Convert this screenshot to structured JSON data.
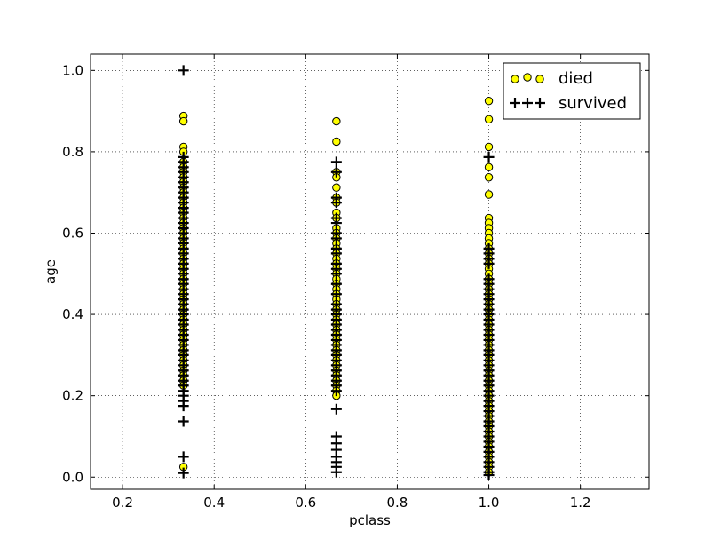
{
  "chart_data": {
    "type": "scatter",
    "title": "",
    "xlabel": "pclass",
    "ylabel": "age",
    "xlim": [
      0.13,
      1.35
    ],
    "ylim": [
      -0.03,
      1.04
    ],
    "xticks": [
      0.2,
      0.4,
      0.6,
      0.8,
      1.0,
      1.2
    ],
    "yticks": [
      0.0,
      0.2,
      0.4,
      0.6,
      0.8,
      1.0
    ],
    "xtick_labels": [
      "0.2",
      "0.4",
      "0.6",
      "0.8",
      "1.0",
      "1.2"
    ],
    "ytick_labels": [
      "0.0",
      "0.2",
      "0.4",
      "0.6",
      "0.8",
      "1.0"
    ],
    "grid": true,
    "legend_position": "top-right",
    "series": [
      {
        "name": "died",
        "marker": "circle",
        "color": "#ffff00",
        "points": [
          [
            0.333,
            0.888
          ],
          [
            0.333,
            0.875
          ],
          [
            0.333,
            0.812
          ],
          [
            0.333,
            0.8
          ],
          [
            0.333,
            0.775
          ],
          [
            0.333,
            0.762
          ],
          [
            0.333,
            0.75
          ],
          [
            0.333,
            0.737
          ],
          [
            0.333,
            0.725
          ],
          [
            0.333,
            0.712
          ],
          [
            0.333,
            0.7
          ],
          [
            0.333,
            0.687
          ],
          [
            0.333,
            0.675
          ],
          [
            0.333,
            0.662
          ],
          [
            0.333,
            0.65
          ],
          [
            0.333,
            0.637
          ],
          [
            0.333,
            0.625
          ],
          [
            0.333,
            0.612
          ],
          [
            0.333,
            0.6
          ],
          [
            0.333,
            0.587
          ],
          [
            0.333,
            0.575
          ],
          [
            0.333,
            0.562
          ],
          [
            0.333,
            0.55
          ],
          [
            0.333,
            0.537
          ],
          [
            0.333,
            0.525
          ],
          [
            0.333,
            0.512
          ],
          [
            0.333,
            0.5
          ],
          [
            0.333,
            0.487
          ],
          [
            0.333,
            0.475
          ],
          [
            0.333,
            0.462
          ],
          [
            0.333,
            0.45
          ],
          [
            0.333,
            0.437
          ],
          [
            0.333,
            0.425
          ],
          [
            0.333,
            0.412
          ],
          [
            0.333,
            0.4
          ],
          [
            0.333,
            0.387
          ],
          [
            0.333,
            0.375
          ],
          [
            0.333,
            0.362
          ],
          [
            0.333,
            0.35
          ],
          [
            0.333,
            0.337
          ],
          [
            0.333,
            0.325
          ],
          [
            0.333,
            0.312
          ],
          [
            0.333,
            0.3
          ],
          [
            0.333,
            0.287
          ],
          [
            0.333,
            0.275
          ],
          [
            0.333,
            0.262
          ],
          [
            0.333,
            0.25
          ],
          [
            0.333,
            0.237
          ],
          [
            0.333,
            0.225
          ],
          [
            0.333,
            0.025
          ],
          [
            0.667,
            0.875
          ],
          [
            0.667,
            0.825
          ],
          [
            0.667,
            0.75
          ],
          [
            0.667,
            0.737
          ],
          [
            0.667,
            0.712
          ],
          [
            0.667,
            0.687
          ],
          [
            0.667,
            0.675
          ],
          [
            0.667,
            0.65
          ],
          [
            0.667,
            0.637
          ],
          [
            0.667,
            0.612
          ],
          [
            0.667,
            0.6
          ],
          [
            0.667,
            0.587
          ],
          [
            0.667,
            0.575
          ],
          [
            0.667,
            0.562
          ],
          [
            0.667,
            0.55
          ],
          [
            0.667,
            0.537
          ],
          [
            0.667,
            0.525
          ],
          [
            0.667,
            0.512
          ],
          [
            0.667,
            0.5
          ],
          [
            0.667,
            0.487
          ],
          [
            0.667,
            0.475
          ],
          [
            0.667,
            0.462
          ],
          [
            0.667,
            0.45
          ],
          [
            0.667,
            0.437
          ],
          [
            0.667,
            0.425
          ],
          [
            0.667,
            0.412
          ],
          [
            0.667,
            0.4
          ],
          [
            0.667,
            0.387
          ],
          [
            0.667,
            0.375
          ],
          [
            0.667,
            0.362
          ],
          [
            0.667,
            0.35
          ],
          [
            0.667,
            0.337
          ],
          [
            0.667,
            0.325
          ],
          [
            0.667,
            0.312
          ],
          [
            0.667,
            0.3
          ],
          [
            0.667,
            0.287
          ],
          [
            0.667,
            0.275
          ],
          [
            0.667,
            0.262
          ],
          [
            0.667,
            0.25
          ],
          [
            0.667,
            0.237
          ],
          [
            0.667,
            0.225
          ],
          [
            0.667,
            0.212
          ],
          [
            0.667,
            0.2
          ],
          [
            1.0,
            0.925
          ],
          [
            1.0,
            0.88
          ],
          [
            1.0,
            0.812
          ],
          [
            1.0,
            0.762
          ],
          [
            1.0,
            0.737
          ],
          [
            1.0,
            0.695
          ],
          [
            1.0,
            0.637
          ],
          [
            1.0,
            0.625
          ],
          [
            1.0,
            0.612
          ],
          [
            1.0,
            0.6
          ],
          [
            1.0,
            0.587
          ],
          [
            1.0,
            0.575
          ],
          [
            1.0,
            0.562
          ],
          [
            1.0,
            0.55
          ],
          [
            1.0,
            0.537
          ],
          [
            1.0,
            0.525
          ],
          [
            1.0,
            0.512
          ],
          [
            1.0,
            0.5
          ],
          [
            1.0,
            0.487
          ],
          [
            1.0,
            0.475
          ],
          [
            1.0,
            0.462
          ],
          [
            1.0,
            0.45
          ],
          [
            1.0,
            0.437
          ],
          [
            1.0,
            0.425
          ],
          [
            1.0,
            0.412
          ],
          [
            1.0,
            0.4
          ],
          [
            1.0,
            0.387
          ],
          [
            1.0,
            0.375
          ],
          [
            1.0,
            0.362
          ],
          [
            1.0,
            0.35
          ],
          [
            1.0,
            0.337
          ],
          [
            1.0,
            0.325
          ],
          [
            1.0,
            0.312
          ],
          [
            1.0,
            0.3
          ],
          [
            1.0,
            0.287
          ],
          [
            1.0,
            0.275
          ],
          [
            1.0,
            0.262
          ],
          [
            1.0,
            0.25
          ],
          [
            1.0,
            0.237
          ],
          [
            1.0,
            0.225
          ],
          [
            1.0,
            0.212
          ],
          [
            1.0,
            0.2
          ],
          [
            1.0,
            0.187
          ],
          [
            1.0,
            0.175
          ],
          [
            1.0,
            0.162
          ],
          [
            1.0,
            0.15
          ],
          [
            1.0,
            0.137
          ],
          [
            1.0,
            0.125
          ],
          [
            1.0,
            0.112
          ],
          [
            1.0,
            0.1
          ],
          [
            1.0,
            0.087
          ],
          [
            1.0,
            0.075
          ],
          [
            1.0,
            0.062
          ],
          [
            1.0,
            0.05
          ],
          [
            1.0,
            0.037
          ],
          [
            1.0,
            0.025
          ],
          [
            1.0,
            0.012
          ]
        ]
      },
      {
        "name": "survived",
        "marker": "plus",
        "color": "#000000",
        "points": [
          [
            0.333,
            1.0
          ],
          [
            0.333,
            0.787
          ],
          [
            0.333,
            0.775
          ],
          [
            0.333,
            0.762
          ],
          [
            0.333,
            0.75
          ],
          [
            0.333,
            0.737
          ],
          [
            0.333,
            0.725
          ],
          [
            0.333,
            0.712
          ],
          [
            0.333,
            0.7
          ],
          [
            0.333,
            0.687
          ],
          [
            0.333,
            0.675
          ],
          [
            0.333,
            0.662
          ],
          [
            0.333,
            0.65
          ],
          [
            0.333,
            0.637
          ],
          [
            0.333,
            0.625
          ],
          [
            0.333,
            0.612
          ],
          [
            0.333,
            0.6
          ],
          [
            0.333,
            0.587
          ],
          [
            0.333,
            0.575
          ],
          [
            0.333,
            0.562
          ],
          [
            0.333,
            0.55
          ],
          [
            0.333,
            0.537
          ],
          [
            0.333,
            0.525
          ],
          [
            0.333,
            0.512
          ],
          [
            0.333,
            0.5
          ],
          [
            0.333,
            0.487
          ],
          [
            0.333,
            0.475
          ],
          [
            0.333,
            0.462
          ],
          [
            0.333,
            0.45
          ],
          [
            0.333,
            0.437
          ],
          [
            0.333,
            0.425
          ],
          [
            0.333,
            0.412
          ],
          [
            0.333,
            0.4
          ],
          [
            0.333,
            0.387
          ],
          [
            0.333,
            0.375
          ],
          [
            0.333,
            0.362
          ],
          [
            0.333,
            0.35
          ],
          [
            0.333,
            0.337
          ],
          [
            0.333,
            0.325
          ],
          [
            0.333,
            0.312
          ],
          [
            0.333,
            0.3
          ],
          [
            0.333,
            0.287
          ],
          [
            0.333,
            0.275
          ],
          [
            0.333,
            0.262
          ],
          [
            0.333,
            0.25
          ],
          [
            0.333,
            0.237
          ],
          [
            0.333,
            0.225
          ],
          [
            0.333,
            0.212
          ],
          [
            0.333,
            0.2
          ],
          [
            0.333,
            0.187
          ],
          [
            0.333,
            0.175
          ],
          [
            0.333,
            0.137
          ],
          [
            0.333,
            0.05
          ],
          [
            0.333,
            0.01
          ],
          [
            0.667,
            0.775
          ],
          [
            0.667,
            0.75
          ],
          [
            0.667,
            0.687
          ],
          [
            0.667,
            0.675
          ],
          [
            0.667,
            0.637
          ],
          [
            0.667,
            0.625
          ],
          [
            0.667,
            0.6
          ],
          [
            0.667,
            0.587
          ],
          [
            0.667,
            0.562
          ],
          [
            0.667,
            0.55
          ],
          [
            0.667,
            0.525
          ],
          [
            0.667,
            0.512
          ],
          [
            0.667,
            0.5
          ],
          [
            0.667,
            0.475
          ],
          [
            0.667,
            0.45
          ],
          [
            0.667,
            0.425
          ],
          [
            0.667,
            0.412
          ],
          [
            0.667,
            0.4
          ],
          [
            0.667,
            0.387
          ],
          [
            0.667,
            0.375
          ],
          [
            0.667,
            0.362
          ],
          [
            0.667,
            0.35
          ],
          [
            0.667,
            0.337
          ],
          [
            0.667,
            0.325
          ],
          [
            0.667,
            0.312
          ],
          [
            0.667,
            0.3
          ],
          [
            0.667,
            0.287
          ],
          [
            0.667,
            0.275
          ],
          [
            0.667,
            0.262
          ],
          [
            0.667,
            0.25
          ],
          [
            0.667,
            0.237
          ],
          [
            0.667,
            0.225
          ],
          [
            0.667,
            0.212
          ],
          [
            0.667,
            0.167
          ],
          [
            0.667,
            0.1
          ],
          [
            0.667,
            0.083
          ],
          [
            0.667,
            0.067
          ],
          [
            0.667,
            0.05
          ],
          [
            0.667,
            0.037
          ],
          [
            0.667,
            0.025
          ],
          [
            0.667,
            0.012
          ],
          [
            1.0,
            0.787
          ],
          [
            1.0,
            0.562
          ],
          [
            1.0,
            0.55
          ],
          [
            1.0,
            0.537
          ],
          [
            1.0,
            0.525
          ],
          [
            1.0,
            0.487
          ],
          [
            1.0,
            0.475
          ],
          [
            1.0,
            0.462
          ],
          [
            1.0,
            0.45
          ],
          [
            1.0,
            0.437
          ],
          [
            1.0,
            0.425
          ],
          [
            1.0,
            0.412
          ],
          [
            1.0,
            0.4
          ],
          [
            1.0,
            0.387
          ],
          [
            1.0,
            0.375
          ],
          [
            1.0,
            0.362
          ],
          [
            1.0,
            0.35
          ],
          [
            1.0,
            0.337
          ],
          [
            1.0,
            0.325
          ],
          [
            1.0,
            0.312
          ],
          [
            1.0,
            0.3
          ],
          [
            1.0,
            0.287
          ],
          [
            1.0,
            0.275
          ],
          [
            1.0,
            0.262
          ],
          [
            1.0,
            0.25
          ],
          [
            1.0,
            0.237
          ],
          [
            1.0,
            0.225
          ],
          [
            1.0,
            0.212
          ],
          [
            1.0,
            0.2
          ],
          [
            1.0,
            0.187
          ],
          [
            1.0,
            0.175
          ],
          [
            1.0,
            0.162
          ],
          [
            1.0,
            0.15
          ],
          [
            1.0,
            0.137
          ],
          [
            1.0,
            0.125
          ],
          [
            1.0,
            0.112
          ],
          [
            1.0,
            0.1
          ],
          [
            1.0,
            0.087
          ],
          [
            1.0,
            0.075
          ],
          [
            1.0,
            0.062
          ],
          [
            1.0,
            0.05
          ],
          [
            1.0,
            0.037
          ],
          [
            1.0,
            0.025
          ],
          [
            1.0,
            0.012
          ],
          [
            1.0,
            0.005
          ]
        ]
      }
    ]
  }
}
